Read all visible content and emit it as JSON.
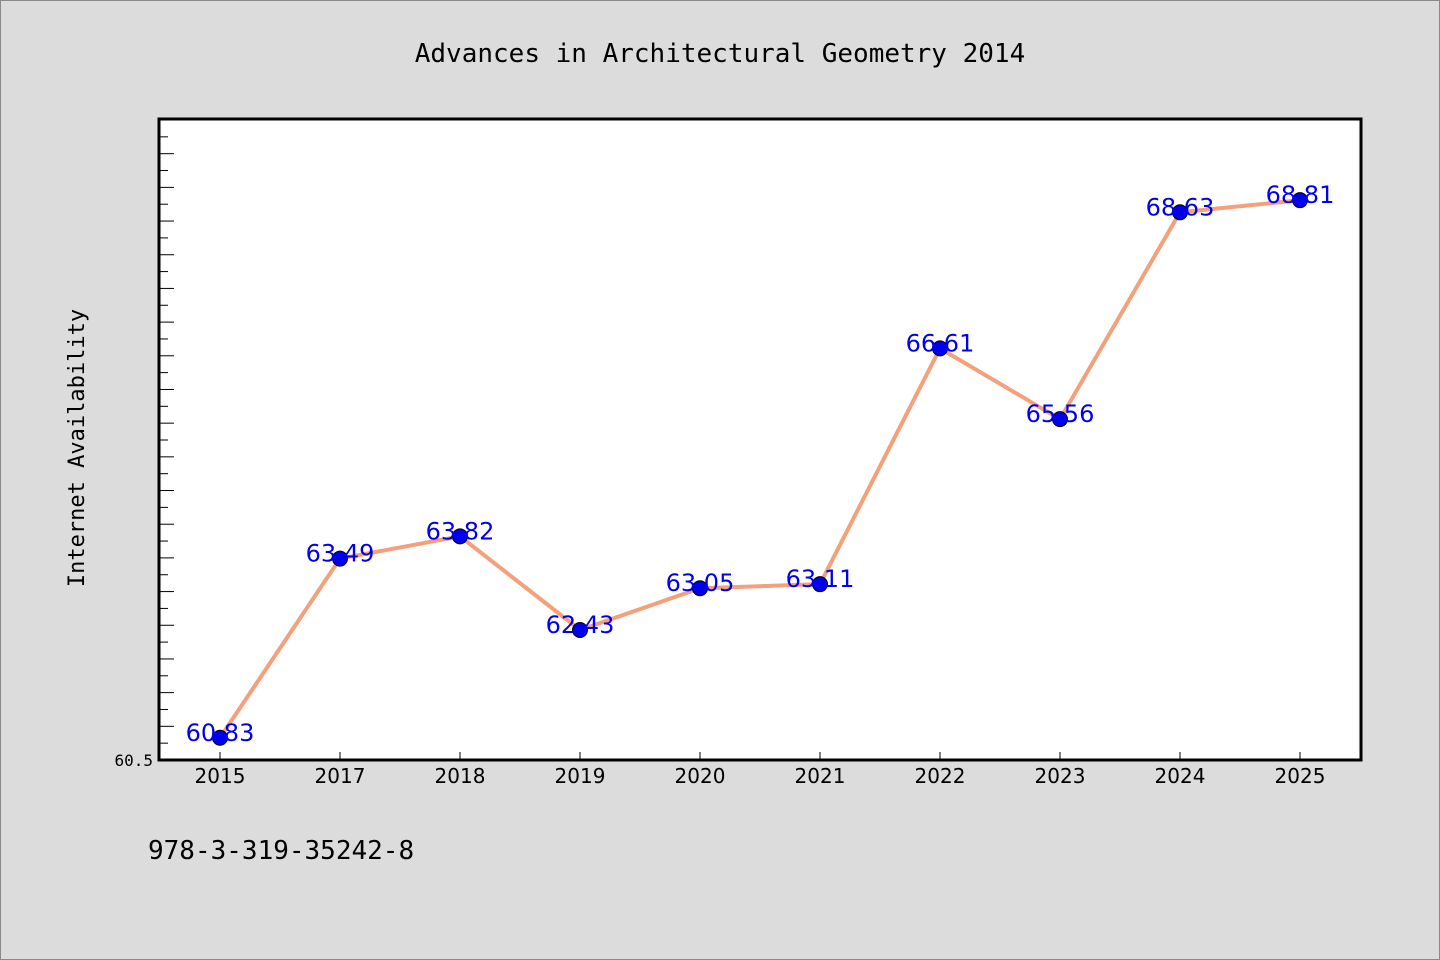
{
  "chart_data": {
    "type": "line",
    "title": "Advances in Architectural Geometry 2014",
    "xlabel": "",
    "ylabel": "Internet Availability",
    "categories": [
      "2015",
      "2017",
      "2018",
      "2019",
      "2020",
      "2021",
      "2022",
      "2023",
      "2024",
      "2025"
    ],
    "series": [
      {
        "values": [
          60.83,
          63.49,
          63.82,
          62.43,
          63.05,
          63.11,
          66.61,
          65.56,
          68.63,
          68.81
        ],
        "data_labels": [
          "60.83",
          "63.49",
          "63.82",
          "62.43",
          "63.05",
          "63.11",
          "66.61",
          "65.56",
          "68.63",
          "68.81"
        ],
        "line_color": "#f4a07a",
        "marker_color": "#0000ee",
        "label_color": "#0000ee"
      }
    ],
    "ylim": [
      60.5,
      70.0
    ],
    "ytick_labels": [
      "60.5"
    ],
    "grid": false,
    "legend": "none"
  },
  "footer": {
    "isbn": "978-3-319-35242-8"
  }
}
